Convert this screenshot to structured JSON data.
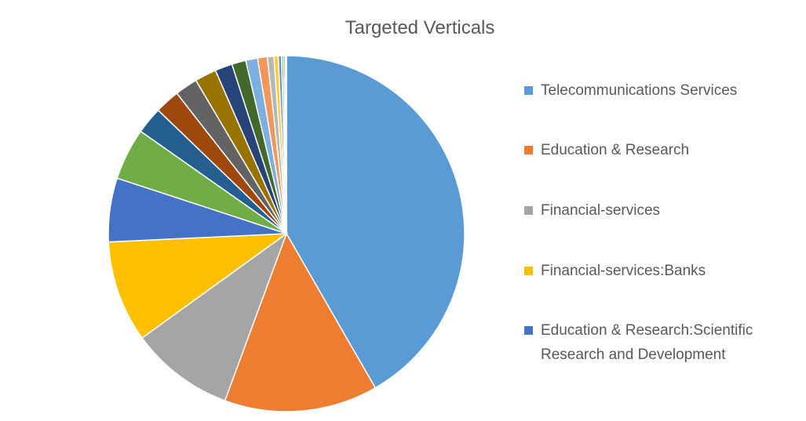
{
  "chart_data": {
    "type": "pie",
    "title": "Targeted Verticals",
    "legend_position": "right",
    "slices": [
      {
        "label": "Telecommunications Services",
        "value": 42.5,
        "color": "#5B9BD5"
      },
      {
        "label": "Education & Research",
        "value": 14.2,
        "color": "#ED7D31"
      },
      {
        "label": "Financial-services",
        "value": 9.6,
        "color": "#A5A5A5"
      },
      {
        "label": "Financial-services:Banks",
        "value": 9.4,
        "color": "#FFC000"
      },
      {
        "label": "Education & Research:Scientific Research and Development",
        "value": 5.9,
        "color": "#4472C4"
      },
      {
        "label": "",
        "value": 4.8,
        "color": "#70AD47"
      },
      {
        "label": "",
        "value": 2.5,
        "color": "#255E91"
      },
      {
        "label": "",
        "value": 2.3,
        "color": "#9E480E"
      },
      {
        "label": "",
        "value": 2.1,
        "color": "#636363"
      },
      {
        "label": "",
        "value": 2.0,
        "color": "#997300"
      },
      {
        "label": "",
        "value": 1.6,
        "color": "#264478"
      },
      {
        "label": "",
        "value": 1.3,
        "color": "#43682B"
      },
      {
        "label": "",
        "value": 1.1,
        "color": "#7CAFDD"
      },
      {
        "label": "",
        "value": 0.9,
        "color": "#F1975A"
      },
      {
        "label": "",
        "value": 0.6,
        "color": "#B7B7B7"
      },
      {
        "label": "",
        "value": 0.4,
        "color": "#FFCD33"
      },
      {
        "label": "",
        "value": 0.3,
        "color": "#698ED0"
      },
      {
        "label": "",
        "value": 0.2,
        "color": "#8CC168"
      },
      {
        "label": "",
        "value": 0.15,
        "color": "#327DC2"
      },
      {
        "label": "",
        "value": 0.1,
        "color": "#D26012"
      }
    ],
    "legend": [
      {
        "label": "Telecommunications Services",
        "color": "#5B9BD5"
      },
      {
        "label": "Education & Research",
        "color": "#ED7D31"
      },
      {
        "label": "Financial-services",
        "color": "#A5A5A5"
      },
      {
        "label": "Financial-services:Banks",
        "color": "#FFC000"
      },
      {
        "label": "Education & Research:Scientific Research and Development",
        "color": "#4472C4"
      }
    ]
  }
}
